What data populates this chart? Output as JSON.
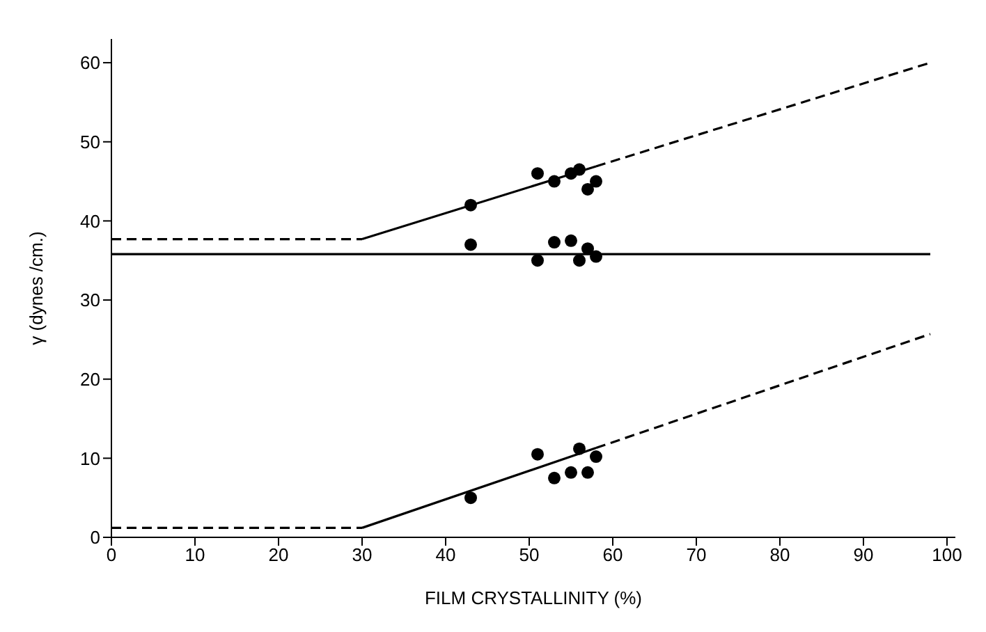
{
  "chart_data": {
    "type": "scatter",
    "xlabel": "FILM CRYSTALLINITY (%)",
    "ylabel": "γ (dynes /cm.)",
    "xlim": [
      0,
      101
    ],
    "xticks": [
      0,
      10,
      20,
      30,
      40,
      50,
      60,
      70,
      80,
      90,
      100
    ],
    "ylim": [
      0,
      63
    ],
    "yticks": [
      0,
      10,
      20,
      30,
      40,
      50,
      60
    ],
    "grid": false,
    "legend": false,
    "marker": "circle",
    "series": [
      {
        "color": "#000000",
        "x": [
          43,
          51,
          53,
          55,
          56,
          57,
          58
        ],
        "values": [
          42,
          46,
          45,
          46,
          46.5,
          44,
          45
        ]
      },
      {
        "color": "#000000",
        "x": [
          43,
          51,
          53,
          55,
          56,
          57,
          58
        ],
        "values": [
          37,
          35,
          37.3,
          37.5,
          35,
          36.5,
          35.5
        ]
      },
      {
        "color": "#000000",
        "x": [
          43,
          51,
          53,
          55,
          56,
          57,
          58
        ],
        "values": [
          5,
          10.5,
          7.5,
          8.2,
          11.2,
          8.2,
          10.2
        ]
      },
      {
        "type": "line",
        "color": "#000000",
        "line_style": "dashed",
        "marker": "none",
        "x": [
          0,
          30
        ],
        "values": [
          37.7,
          37.7
        ]
      },
      {
        "type": "line",
        "color": "#000000",
        "line_style": "solid",
        "marker": "none",
        "x": [
          30,
          58
        ],
        "values": [
          37.7,
          46.9
        ]
      },
      {
        "type": "line",
        "color": "#000000",
        "line_style": "dashed",
        "marker": "none",
        "x": [
          58,
          98
        ],
        "values": [
          46.9,
          60
        ]
      },
      {
        "type": "line",
        "color": "#000000",
        "line_style": "solid",
        "marker": "none",
        "x": [
          0,
          98
        ],
        "values": [
          35.8,
          35.8
        ]
      },
      {
        "type": "line",
        "color": "#000000",
        "line_style": "dashed",
        "marker": "none",
        "x": [
          0,
          30
        ],
        "values": [
          1.2,
          1.2
        ]
      },
      {
        "type": "line",
        "color": "#000000",
        "line_style": "solid",
        "marker": "none",
        "x": [
          30,
          58
        ],
        "values": [
          1.2,
          11.3
        ]
      },
      {
        "type": "line",
        "color": "#000000",
        "line_style": "dashed",
        "marker": "none",
        "x": [
          58,
          98
        ],
        "values": [
          11.3,
          25.7
        ]
      }
    ]
  }
}
